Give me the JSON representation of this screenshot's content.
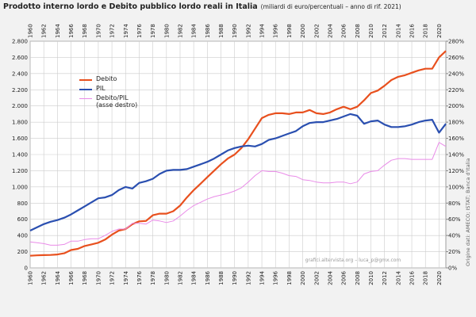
{
  "chart_data": {
    "type": "line",
    "title": "Prodotto interno lordo e Debito pubblico lordo reali in Italia",
    "subtitle": "(miliardi di euro/percentuali – anno di rif. 2021)",
    "annotations": [
      "grafici.altervista.org – luca_p@gmx.com",
      "Origine dati: AMECO; ISTAT; Banca d'Italia"
    ],
    "x": [
      1960,
      1961,
      1962,
      1963,
      1964,
      1965,
      1966,
      1967,
      1968,
      1969,
      1970,
      1971,
      1972,
      1973,
      1974,
      1975,
      1976,
      1977,
      1978,
      1979,
      1980,
      1981,
      1982,
      1983,
      1984,
      1985,
      1986,
      1987,
      1988,
      1989,
      1990,
      1991,
      1992,
      1993,
      1994,
      1995,
      1996,
      1997,
      1998,
      1999,
      2000,
      2001,
      2002,
      2003,
      2004,
      2005,
      2006,
      2007,
      2008,
      2009,
      2010,
      2011,
      2012,
      2013,
      2014,
      2015,
      2016,
      2017,
      2018,
      2019,
      2020,
      2021
    ],
    "series": [
      {
        "name": "Debito",
        "color": "#e8501e",
        "values": [
          150,
          155,
          158,
          160,
          165,
          180,
          220,
          235,
          270,
          290,
          310,
          350,
          410,
          460,
          480,
          540,
          575,
          580,
          650,
          670,
          670,
          700,
          770,
          870,
          960,
          1040,
          1120,
          1200,
          1280,
          1350,
          1400,
          1480,
          1590,
          1720,
          1850,
          1890,
          1910,
          1910,
          1900,
          1920,
          1920,
          1950,
          1910,
          1900,
          1920,
          1960,
          1990,
          1960,
          1990,
          2070,
          2160,
          2190,
          2250,
          2320,
          2360,
          2380,
          2410,
          2440,
          2460,
          2460,
          2600,
          2680
        ]
      },
      {
        "name": "PIL",
        "color": "#2a4fb0",
        "values": [
          460,
          500,
          540,
          570,
          590,
          620,
          660,
          710,
          760,
          810,
          860,
          870,
          900,
          960,
          1000,
          980,
          1050,
          1070,
          1100,
          1160,
          1200,
          1210,
          1210,
          1220,
          1250,
          1280,
          1310,
          1350,
          1400,
          1450,
          1480,
          1500,
          1510,
          1500,
          1530,
          1580,
          1600,
          1630,
          1660,
          1690,
          1750,
          1790,
          1800,
          1800,
          1820,
          1840,
          1870,
          1900,
          1880,
          1780,
          1810,
          1820,
          1770,
          1740,
          1740,
          1750,
          1770,
          1800,
          1820,
          1830,
          1670,
          1780
        ]
      },
      {
        "name": "Debito/PIL (asse destro)",
        "color": "#e98be8",
        "axis": "y2",
        "values": [
          32,
          31,
          30,
          28,
          28,
          29,
          33,
          33,
          35,
          36,
          36,
          40,
          45,
          48,
          48,
          55,
          55,
          54,
          59,
          58,
          56,
          58,
          64,
          71,
          77,
          81,
          85,
          88,
          90,
          92,
          95,
          99,
          106,
          114,
          120,
          119,
          119,
          117,
          114,
          113,
          109,
          108,
          106,
          105,
          105,
          106,
          106,
          104,
          106,
          116,
          119,
          120,
          127,
          133,
          135,
          135,
          134,
          134,
          134,
          134,
          155,
          150
        ]
      }
    ],
    "xlim": [
      1960,
      2021
    ],
    "xticks": [
      1960,
      1962,
      1964,
      1966,
      1968,
      1970,
      1972,
      1974,
      1976,
      1978,
      1980,
      1982,
      1984,
      1986,
      1988,
      1990,
      1992,
      1994,
      1996,
      1998,
      2000,
      2002,
      2004,
      2006,
      2008,
      2010,
      2012,
      2014,
      2016,
      2018,
      2020
    ],
    "ylim": [
      0,
      2800
    ],
    "yticks": [
      0,
      200,
      400,
      600,
      800,
      {
        "value": 1000,
        "label": "1.000"
      },
      {
        "value": 1200,
        "label": "1.200"
      },
      {
        "value": 1400,
        "label": "1.400"
      },
      {
        "value": 1600,
        "label": "1.600"
      },
      {
        "value": 1800,
        "label": "1.800"
      },
      {
        "value": 2000,
        "label": "2.000"
      },
      {
        "value": 2200,
        "label": "2.200"
      },
      {
        "value": 2400,
        "label": "2.400"
      },
      {
        "value": 2600,
        "label": "2.600"
      },
      {
        "value": 2800,
        "label": "2.800"
      }
    ],
    "y2lim": [
      0,
      280
    ],
    "y2ticks": [
      {
        "value": 0,
        "label": "0%"
      },
      {
        "value": 20,
        "label": "20%"
      },
      {
        "value": 40,
        "label": "40%"
      },
      {
        "value": 60,
        "label": "60%"
      },
      {
        "value": 80,
        "label": "80%"
      },
      {
        "value": 100,
        "label": "100%"
      },
      {
        "value": 120,
        "label": "120%"
      },
      {
        "value": 140,
        "label": "140%"
      },
      {
        "value": 160,
        "label": "160%"
      },
      {
        "value": 180,
        "label": "180%"
      },
      {
        "value": 200,
        "label": "200%"
      },
      {
        "value": 220,
        "label": "220%"
      },
      {
        "value": 240,
        "label": "240%"
      },
      {
        "value": 260,
        "label": "260%"
      },
      {
        "value": 280,
        "label": "280%"
      }
    ],
    "grid": true,
    "legend": "upper left"
  }
}
